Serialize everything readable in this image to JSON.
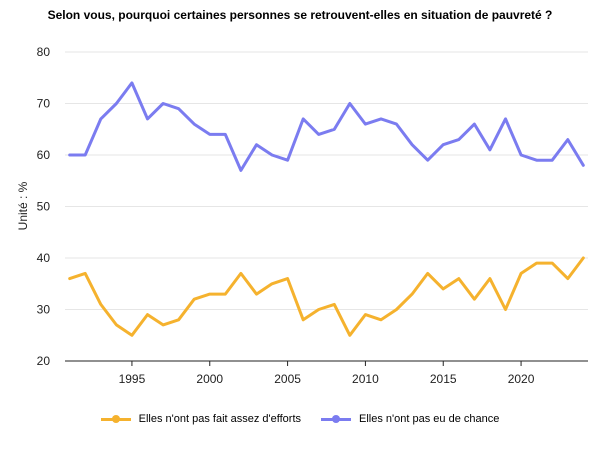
{
  "chart_data": {
    "type": "line",
    "title": "Selon vous, pourquoi certaines personnes se retrouvent-elles en situation de pauvreté ?",
    "ylabel": "Unité : %",
    "xlabel": "",
    "ylim": [
      20,
      80
    ],
    "yticks": [
      "20",
      "30",
      "40",
      "50",
      "60",
      "70",
      "80"
    ],
    "xlim": [
      1990.7,
      2024.3
    ],
    "xticks": [
      "1995",
      "2000",
      "2005",
      "2010",
      "2015",
      "2020"
    ],
    "grid": "horizontal",
    "legend_position": "bottom",
    "x": [
      1991,
      1992,
      1993,
      1994,
      1995,
      1996,
      1997,
      1998,
      1999,
      2000,
      2001,
      2002,
      2003,
      2004,
      2005,
      2006,
      2007,
      2008,
      2009,
      2010,
      2011,
      2012,
      2013,
      2014,
      2015,
      2016,
      2017,
      2018,
      2019,
      2020,
      2021,
      2022,
      2023,
      2024
    ],
    "series": [
      {
        "name": "Elles n'ont pas fait assez d'efforts",
        "color": "#f5b22e",
        "values": [
          36,
          37,
          31,
          27,
          25,
          29,
          27,
          28,
          32,
          33,
          33,
          37,
          33,
          35,
          36,
          28,
          30,
          31,
          25,
          29,
          28,
          30,
          33,
          37,
          34,
          36,
          32,
          36,
          30,
          37,
          39,
          39,
          36,
          40
        ]
      },
      {
        "name": "Elles n'ont pas eu de chance",
        "color": "#7b7cf0",
        "values": [
          60,
          60,
          67,
          70,
          74,
          67,
          70,
          69,
          66,
          64,
          64,
          57,
          62,
          60,
          59,
          67,
          64,
          65,
          70,
          66,
          67,
          66,
          62,
          59,
          62,
          63,
          66,
          61,
          67,
          60,
          59,
          59,
          63,
          58
        ]
      }
    ]
  }
}
